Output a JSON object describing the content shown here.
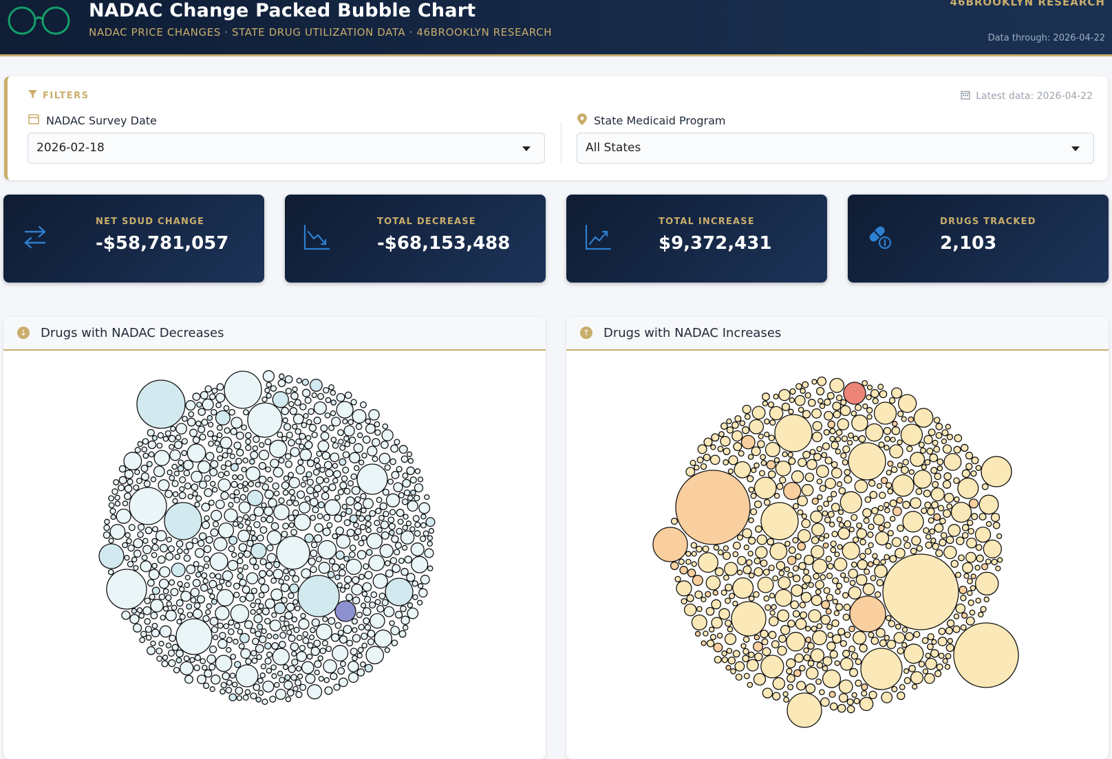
{
  "header": {
    "title": "NADAC Change Packed Bubble Chart",
    "subtitle": "NADAC PRICE CHANGES · STATE DRUG UTILIZATION DATA · 46BROOKLYN RESEARCH",
    "brand": "46BROOKLYN RESEARCH",
    "data_through": "Data through: 2026-04-22"
  },
  "filters": {
    "label": "FILTERS",
    "latest": "Latest data: 2026-04-22",
    "survey_date": {
      "label": "NADAC Survey Date",
      "value": "2026-02-18"
    },
    "state": {
      "label": "State Medicaid Program",
      "value": "All States"
    }
  },
  "stats": [
    {
      "label": "NET SDUD CHANGE",
      "value": "-$58,781,057",
      "icon": "swap-arrows-icon"
    },
    {
      "label": "TOTAL DECREASE",
      "value": "-$68,153,488",
      "icon": "trend-down-icon"
    },
    {
      "label": "TOTAL INCREASE",
      "value": "$9,372,431",
      "icon": "trend-up-icon"
    },
    {
      "label": "DRUGS TRACKED",
      "value": "2,103",
      "icon": "pill-icon"
    }
  ],
  "panels": {
    "decreases": {
      "title": "Drugs with NADAC Decreases",
      "icon": "arrow-down-circle-icon"
    },
    "increases": {
      "title": "Drugs with NADAC Increases",
      "icon": "arrow-up-circle-icon"
    }
  },
  "colors": {
    "navy": "#0f1d35",
    "gold": "#c9ad6b",
    "decrease_light": "#eaf5f8",
    "decrease_mid": "#d2e9ef",
    "decrease_strong": "#8e91cf",
    "increase_light": "#fbe8b8",
    "increase_mid": "#f9cf9f",
    "increase_strong": "#ec8478"
  }
}
